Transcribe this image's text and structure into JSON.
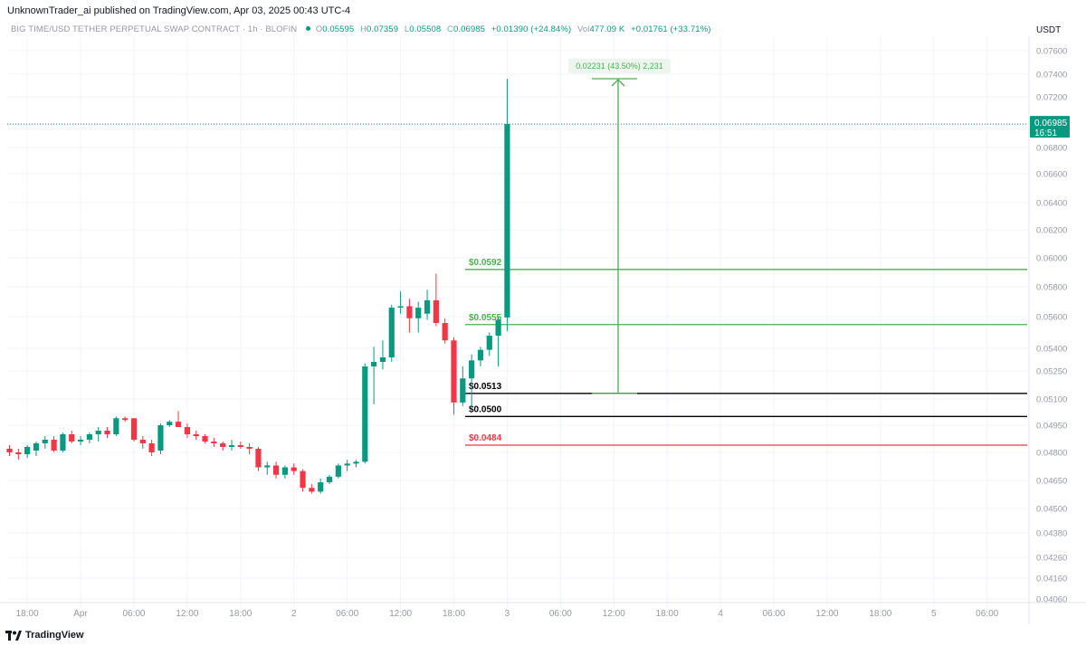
{
  "header": {
    "publisher": "UnknownTrader_ai published on TradingView.com, Apr 03, 2025 00:43 UTC-4",
    "symbol": "BIG TIME/USD TETHER PERPETUAL SWAP CONTRACT · 1h · BLOFIN",
    "open_label": "O",
    "open": "0.05595",
    "high_label": "H",
    "high": "0.07359",
    "low_label": "L",
    "low": "0.05508",
    "close_label": "C",
    "close": "0.06985",
    "change": "+0.01390 (+24.84%)",
    "vol_label": "Vol",
    "vol": "477.09 K",
    "vol_change": "+0.01761 (+33.71%)",
    "currency": "USDT"
  },
  "footer": {
    "brand": "TradingView"
  },
  "colors": {
    "up": "#089981",
    "down": "#f23645",
    "green_line": "#4caf50",
    "black_line": "#000000",
    "red_line": "#f23645",
    "grid": "#f0f3fa"
  },
  "chart_data": {
    "type": "candlestick",
    "timeframe": "1h",
    "y_ticks": [
      "0.07600",
      "0.07400",
      "0.07200",
      "0.06800",
      "0.06600",
      "0.06400",
      "0.06200",
      "0.06000",
      "0.05800",
      "0.05600",
      "0.05400",
      "0.05250",
      "0.05100",
      "0.04950",
      "0.04800",
      "0.04650",
      "0.04500",
      "0.04380",
      "0.04260",
      "0.04160",
      "0.04060"
    ],
    "x_ticks": [
      {
        "label": "18:00",
        "index": 2
      },
      {
        "label": "Apr",
        "index": 8
      },
      {
        "label": "06:00",
        "index": 14
      },
      {
        "label": "12:00",
        "index": 20
      },
      {
        "label": "18:00",
        "index": 26
      },
      {
        "label": "2",
        "index": 32
      },
      {
        "label": "06:00",
        "index": 38
      },
      {
        "label": "12:00",
        "index": 44
      },
      {
        "label": "18:00",
        "index": 50
      },
      {
        "label": "3",
        "index": 56
      },
      {
        "label": "06:00",
        "index": 62
      },
      {
        "label": "12:00",
        "index": 68
      },
      {
        "label": "18:00",
        "index": 74
      },
      {
        "label": "4",
        "index": 80
      },
      {
        "label": "06:00",
        "index": 86
      },
      {
        "label": "12:00",
        "index": 92
      },
      {
        "label": "18:00",
        "index": 98
      },
      {
        "label": "5",
        "index": 104
      },
      {
        "label": "06:00",
        "index": 110
      }
    ],
    "candles": [
      {
        "o": 0.0482,
        "h": 0.0484,
        "l": 0.0478,
        "c": 0.048
      },
      {
        "o": 0.048,
        "h": 0.0482,
        "l": 0.0476,
        "c": 0.0479
      },
      {
        "o": 0.0479,
        "h": 0.0484,
        "l": 0.0477,
        "c": 0.0483
      },
      {
        "o": 0.0481,
        "h": 0.0486,
        "l": 0.0478,
        "c": 0.0485
      },
      {
        "o": 0.0485,
        "h": 0.0489,
        "l": 0.0482,
        "c": 0.0487
      },
      {
        "o": 0.0487,
        "h": 0.0489,
        "l": 0.048,
        "c": 0.0481
      },
      {
        "o": 0.0481,
        "h": 0.0491,
        "l": 0.048,
        "c": 0.049
      },
      {
        "o": 0.049,
        "h": 0.0492,
        "l": 0.0485,
        "c": 0.0486
      },
      {
        "o": 0.0486,
        "h": 0.0489,
        "l": 0.0484,
        "c": 0.0487
      },
      {
        "o": 0.0487,
        "h": 0.0491,
        "l": 0.0485,
        "c": 0.049
      },
      {
        "o": 0.049,
        "h": 0.0494,
        "l": 0.0486,
        "c": 0.0492
      },
      {
        "o": 0.0492,
        "h": 0.0494,
        "l": 0.0488,
        "c": 0.049
      },
      {
        "o": 0.049,
        "h": 0.05,
        "l": 0.0489,
        "c": 0.0499
      },
      {
        "o": 0.0499,
        "h": 0.05,
        "l": 0.0497,
        "c": 0.0498
      },
      {
        "o": 0.0499,
        "h": 0.0499,
        "l": 0.0486,
        "c": 0.0487
      },
      {
        "o": 0.0487,
        "h": 0.0489,
        "l": 0.0482,
        "c": 0.0485
      },
      {
        "o": 0.0485,
        "h": 0.0487,
        "l": 0.0478,
        "c": 0.048
      },
      {
        "o": 0.0481,
        "h": 0.0496,
        "l": 0.0479,
        "c": 0.0495
      },
      {
        "o": 0.0495,
        "h": 0.0498,
        "l": 0.0494,
        "c": 0.0497
      },
      {
        "o": 0.0497,
        "h": 0.0503,
        "l": 0.0495,
        "c": 0.0494
      },
      {
        "o": 0.0494,
        "h": 0.0496,
        "l": 0.0488,
        "c": 0.049
      },
      {
        "o": 0.049,
        "h": 0.0492,
        "l": 0.0487,
        "c": 0.0489
      },
      {
        "o": 0.0489,
        "h": 0.049,
        "l": 0.0485,
        "c": 0.0486
      },
      {
        "o": 0.0486,
        "h": 0.0488,
        "l": 0.0483,
        "c": 0.0485
      },
      {
        "o": 0.0485,
        "h": 0.0486,
        "l": 0.0481,
        "c": 0.0483
      },
      {
        "o": 0.0483,
        "h": 0.0487,
        "l": 0.0481,
        "c": 0.0484
      },
      {
        "o": 0.0484,
        "h": 0.0486,
        "l": 0.0482,
        "c": 0.0483
      },
      {
        "o": 0.0483,
        "h": 0.0485,
        "l": 0.0479,
        "c": 0.0482
      },
      {
        "o": 0.0482,
        "h": 0.0483,
        "l": 0.047,
        "c": 0.0472
      },
      {
        "o": 0.0472,
        "h": 0.0475,
        "l": 0.0468,
        "c": 0.0473
      },
      {
        "o": 0.0473,
        "h": 0.0475,
        "l": 0.0466,
        "c": 0.0468
      },
      {
        "o": 0.0468,
        "h": 0.0473,
        "l": 0.0466,
        "c": 0.0472
      },
      {
        "o": 0.0472,
        "h": 0.0474,
        "l": 0.0468,
        "c": 0.047
      },
      {
        "o": 0.047,
        "h": 0.0471,
        "l": 0.0459,
        "c": 0.0461
      },
      {
        "o": 0.0461,
        "h": 0.0463,
        "l": 0.0458,
        "c": 0.0459
      },
      {
        "o": 0.0459,
        "h": 0.0466,
        "l": 0.0458,
        "c": 0.0464
      },
      {
        "o": 0.0464,
        "h": 0.0468,
        "l": 0.0463,
        "c": 0.0467
      },
      {
        "o": 0.0467,
        "h": 0.0474,
        "l": 0.0466,
        "c": 0.0473
      },
      {
        "o": 0.0473,
        "h": 0.0476,
        "l": 0.047,
        "c": 0.0474
      },
      {
        "o": 0.0474,
        "h": 0.0476,
        "l": 0.0472,
        "c": 0.0475
      },
      {
        "o": 0.0475,
        "h": 0.053,
        "l": 0.0474,
        "c": 0.0528
      },
      {
        "o": 0.0528,
        "h": 0.0541,
        "l": 0.0507,
        "c": 0.0531
      },
      {
        "o": 0.0531,
        "h": 0.0545,
        "l": 0.0526,
        "c": 0.0534
      },
      {
        "o": 0.0534,
        "h": 0.0568,
        "l": 0.0531,
        "c": 0.0566
      },
      {
        "o": 0.0566,
        "h": 0.0577,
        "l": 0.0562,
        "c": 0.0567
      },
      {
        "o": 0.0567,
        "h": 0.0572,
        "l": 0.055,
        "c": 0.0559
      },
      {
        "o": 0.0559,
        "h": 0.057,
        "l": 0.055,
        "c": 0.0566
      },
      {
        "o": 0.0562,
        "h": 0.0578,
        "l": 0.0558,
        "c": 0.0571
      },
      {
        "o": 0.0571,
        "h": 0.0589,
        "l": 0.0554,
        "c": 0.0556
      },
      {
        "o": 0.0556,
        "h": 0.0559,
        "l": 0.0543,
        "c": 0.0545
      },
      {
        "o": 0.0545,
        "h": 0.0547,
        "l": 0.0501,
        "c": 0.0508
      },
      {
        "o": 0.0508,
        "h": 0.0528,
        "l": 0.0506,
        "c": 0.0521
      },
      {
        "o": 0.0521,
        "h": 0.0536,
        "l": 0.0505,
        "c": 0.0532
      },
      {
        "o": 0.0532,
        "h": 0.0541,
        "l": 0.0528,
        "c": 0.0539
      },
      {
        "o": 0.0539,
        "h": 0.055,
        "l": 0.0535,
        "c": 0.0548
      },
      {
        "o": 0.0548,
        "h": 0.056,
        "l": 0.0528,
        "c": 0.0558
      },
      {
        "o": 0.05595,
        "h": 0.07359,
        "l": 0.05508,
        "c": 0.06985
      }
    ],
    "current_price": {
      "value": 0.06985,
      "label": "0.06985",
      "countdown": "16:51"
    },
    "levels": [
      {
        "value": 0.0592,
        "label": "$0.0592",
        "color": "#4caf50"
      },
      {
        "value": 0.0555,
        "label": "$0.0555",
        "color": "#4caf50"
      },
      {
        "value": 0.0513,
        "label": "$0.0513",
        "color": "#000000"
      },
      {
        "value": 0.05,
        "label": "$0.0500",
        "color": "#000000"
      },
      {
        "value": 0.0484,
        "label": "$0.0484",
        "color": "#f23645"
      }
    ],
    "measure": {
      "from": 0.0513,
      "to": 0.0736,
      "label": "0.02231 (43.50%) 2,231"
    }
  }
}
